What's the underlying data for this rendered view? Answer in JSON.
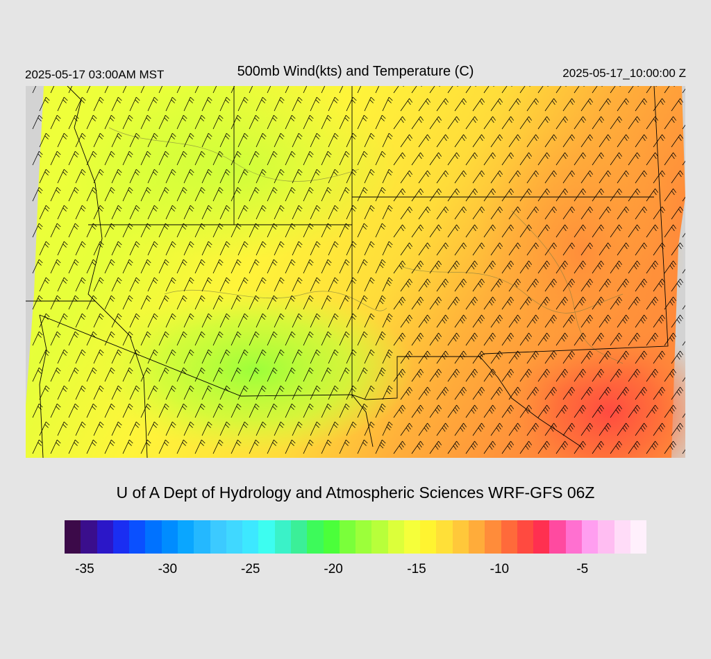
{
  "header": {
    "valid_local": "2025-05-17 03:00AM MST",
    "title": "500mb Wind(kts) and Temperature (C)",
    "valid_utc": "2025-05-17_10:00:00 Z"
  },
  "map": {
    "field": "temperature",
    "units": "C",
    "projection_note": "Southwest US / northern Mexico",
    "wind_direction": "southwest",
    "background_color": "#d3d3d3",
    "boundary_color": "#000000"
  },
  "credit": "U of A Dept of Hydrology and Atmospheric Sciences WRF-GFS 06Z",
  "colorbar": {
    "colors": [
      "#3c0a49",
      "#3a0e8c",
      "#2b17c8",
      "#1a2ef2",
      "#0a50ff",
      "#0072ff",
      "#008cff",
      "#0aa6ff",
      "#24b8ff",
      "#3ccaff",
      "#40d8ff",
      "#3de8ff",
      "#3dfdf0",
      "#3af2c8",
      "#3bef98",
      "#3dfa5a",
      "#4bff3a",
      "#7aff3a",
      "#9cff3a",
      "#b8ff3a",
      "#dcff3a",
      "#f5ff3a",
      "#fff430",
      "#ffe038",
      "#ffc83a",
      "#ffac3a",
      "#ff8c3a",
      "#ff6a3a",
      "#ff4a40",
      "#ff3050",
      "#ff4aa0",
      "#ff70d0",
      "#ff9ef0",
      "#ffbdf2",
      "#ffdcf8",
      "#fff0fc"
    ],
    "tick_labels": [
      "-35",
      "-30",
      "-25",
      "-20",
      "-15",
      "-10",
      "-5"
    ],
    "tick_positions": [
      0.0345,
      0.177,
      0.3195,
      0.462,
      0.605,
      0.7475,
      0.89
    ]
  }
}
